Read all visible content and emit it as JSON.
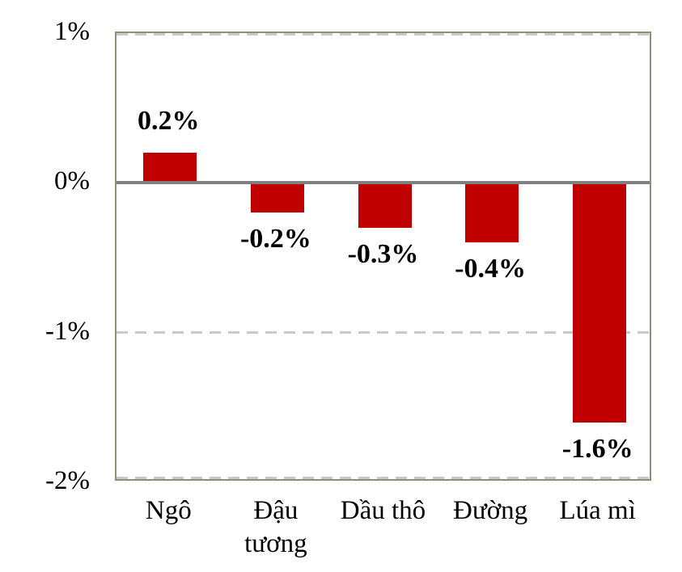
{
  "chart_data": {
    "type": "bar",
    "title": "",
    "xlabel": "",
    "ylabel": "",
    "categories": [
      "Ngô",
      "Đậu tương",
      "Dầu thô",
      "Đường",
      "Lúa mì"
    ],
    "values": [
      0.2,
      -0.2,
      -0.3,
      -0.4,
      -1.6
    ],
    "data_labels": [
      "0.2%",
      "-0.2%",
      "-0.3%",
      "-0.4%",
      "-1.6%"
    ],
    "y_ticks": [
      {
        "label": "1%",
        "value": 1
      },
      {
        "label": "0%",
        "value": 0
      },
      {
        "label": "-1%",
        "value": -1
      },
      {
        "label": "-2%",
        "value": -2
      }
    ],
    "ylim": [
      -2,
      1
    ],
    "legend": "none",
    "grid": "dashed horizontal gridlines at 1%, -1%, -2%; solid gray axis line at 0%",
    "colors": {
      "bar": "#C00000",
      "zero_line": "#808080",
      "gridline": "#C9C9C9",
      "plot_border": "#8E8E72",
      "text": "#000000",
      "background": "#FFFFFF"
    }
  }
}
